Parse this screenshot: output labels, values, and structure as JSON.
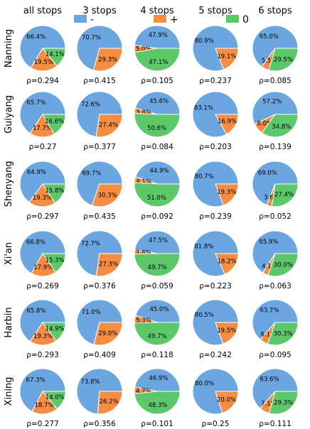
{
  "chart_data": {
    "type": "pie",
    "columns": [
      "all stops",
      "3 stops",
      "4 stops",
      "5 stops",
      "6 stops"
    ],
    "rows": [
      "Nanning",
      "Guiyang",
      "Shenyang",
      "Xi'an",
      "Harbin",
      "Xining"
    ],
    "legend": {
      "placement": "top",
      "entries": [
        {
          "label": "-",
          "color": "#6ca6e0"
        },
        {
          "label": "+",
          "color": "#f58d42"
        },
        {
          "label": "0",
          "color": "#5cc86a"
        }
      ]
    },
    "rho_prefix": "ρ=",
    "pies": [
      [
        {
          "values": [
            66.4,
            19.5,
            14.1
          ],
          "labels": [
            "66.4%",
            "19.5%",
            "14.1%"
          ],
          "rho": "0.294"
        },
        {
          "values": [
            70.7,
            29.3,
            0
          ],
          "labels": [
            "70.7%",
            "29.3%",
            ""
          ],
          "rho": "0.415"
        },
        {
          "values": [
            47.9,
            5.0,
            47.1
          ],
          "labels": [
            "47.9%",
            "5.0%",
            "47.1%"
          ],
          "rho": "0.105"
        },
        {
          "values": [
            80.9,
            19.1,
            0
          ],
          "labels": [
            "80.9%",
            "19.1%",
            ""
          ],
          "rho": "0.237"
        },
        {
          "values": [
            65.0,
            5.5,
            29.5
          ],
          "labels": [
            "65.0%",
            "5.5%",
            "29.5%"
          ],
          "rho": "0.085"
        }
      ],
      [
        {
          "values": [
            65.7,
            17.7,
            16.6
          ],
          "labels": [
            "65.7%",
            "17.7%",
            "16.6%"
          ],
          "rho": "0.27"
        },
        {
          "values": [
            72.6,
            27.4,
            0
          ],
          "labels": [
            "72.6%",
            "27.4%",
            ""
          ],
          "rho": "0.377"
        },
        {
          "values": [
            45.6,
            3.8,
            50.6
          ],
          "labels": [
            "45.6%",
            "3.8%",
            "50.6%"
          ],
          "rho": "0.084"
        },
        {
          "values": [
            83.1,
            16.9,
            0
          ],
          "labels": [
            "83.1%",
            "16.9%",
            ""
          ],
          "rho": "0.203"
        },
        {
          "values": [
            57.2,
            8.0,
            34.8
          ],
          "labels": [
            "57.2%",
            "8.0%",
            "34.8%"
          ],
          "rho": "0.139"
        }
      ],
      [
        {
          "values": [
            64.9,
            19.3,
            15.8
          ],
          "labels": [
            "64.9%",
            "19.3%",
            "15.8%"
          ],
          "rho": "0.297"
        },
        {
          "values": [
            69.7,
            30.3,
            0
          ],
          "labels": [
            "69.7%",
            "30.3%",
            ""
          ],
          "rho": "0.435"
        },
        {
          "values": [
            44.9,
            4.1,
            51.0
          ],
          "labels": [
            "44.9%",
            "4.1%",
            "51.0%"
          ],
          "rho": "0.092"
        },
        {
          "values": [
            80.7,
            19.3,
            0
          ],
          "labels": [
            "80.7%",
            "19.3%",
            ""
          ],
          "rho": "0.239"
        },
        {
          "values": [
            69.0,
            3.6,
            27.4
          ],
          "labels": [
            "69.0%",
            "3.6%",
            "27.4%"
          ],
          "rho": "0.052"
        }
      ],
      [
        {
          "values": [
            66.8,
            17.9,
            15.3
          ],
          "labels": [
            "66.8%",
            "17.9%",
            "15.3%"
          ],
          "rho": "0.269"
        },
        {
          "values": [
            72.7,
            27.3,
            0
          ],
          "labels": [
            "72.7%",
            "27.3%",
            ""
          ],
          "rho": "0.376"
        },
        {
          "values": [
            47.5,
            2.8,
            49.7
          ],
          "labels": [
            "47.5%",
            "2.8%",
            "49.7%"
          ],
          "rho": "0.059"
        },
        {
          "values": [
            81.8,
            18.2,
            0
          ],
          "labels": [
            "81.8%",
            "18.2%",
            ""
          ],
          "rho": "0.223"
        },
        {
          "values": [
            65.9,
            4.1,
            30.0
          ],
          "labels": [
            "65.9%",
            "4.1%",
            "30.0%"
          ],
          "rho": "0.063"
        }
      ],
      [
        {
          "values": [
            65.8,
            19.3,
            14.9
          ],
          "labels": [
            "65.8%",
            "19.3%",
            "14.9%"
          ],
          "rho": "0.293"
        },
        {
          "values": [
            71.0,
            29.0,
            0
          ],
          "labels": [
            "71.0%",
            "29.0%",
            ""
          ],
          "rho": "0.409"
        },
        {
          "values": [
            45.0,
            5.3,
            49.7
          ],
          "labels": [
            "45.0%",
            "5.3%",
            "49.7%"
          ],
          "rho": "0.118"
        },
        {
          "values": [
            80.5,
            19.5,
            0
          ],
          "labels": [
            "80.5%",
            "19.5%",
            ""
          ],
          "rho": "0.242"
        },
        {
          "values": [
            63.7,
            6.1,
            30.3
          ],
          "labels": [
            "63.7%",
            "6.1%",
            "30.3%"
          ],
          "rho": "0.095"
        }
      ],
      [
        {
          "values": [
            67.3,
            18.7,
            14.0
          ],
          "labels": [
            "67.3%",
            "18.7%",
            "14.0%"
          ],
          "rho": "0.277"
        },
        {
          "values": [
            73.8,
            26.2,
            0
          ],
          "labels": [
            "73.8%",
            "26.2%",
            ""
          ],
          "rho": "0.356"
        },
        {
          "values": [
            46.9,
            4.7,
            48.3
          ],
          "labels": [
            "46.9%",
            "4.7%",
            "48.3%"
          ],
          "rho": "0.101"
        },
        {
          "values": [
            80.0,
            20.0,
            0
          ],
          "labels": [
            "80.0%",
            "20.0%",
            ""
          ],
          "rho": "0.25"
        },
        {
          "values": [
            63.6,
            7.1,
            29.3
          ],
          "labels": [
            "63.6%",
            "7.1%",
            "29.3%"
          ],
          "rho": "0.111"
        }
      ]
    ]
  }
}
